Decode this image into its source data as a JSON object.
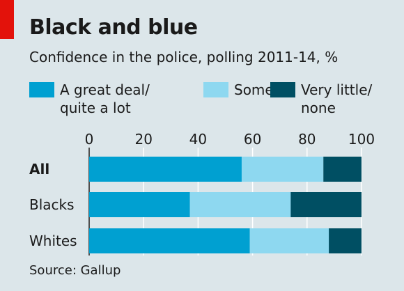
{
  "title": "Black and blue",
  "subtitle": "Confidence in the police, polling 2011-14, %",
  "source": "Source: Gallup",
  "chart_data": {
    "type": "bar",
    "orientation": "horizontal",
    "stacked": true,
    "categories": [
      "All",
      "Blacks",
      "Whites"
    ],
    "series": [
      {
        "name": "A great deal/\nquite a lot",
        "color": "#00a0d1",
        "values": [
          56,
          37,
          59
        ]
      },
      {
        "name": "Some",
        "color": "#8ed8f0",
        "values": [
          30,
          37,
          29
        ]
      },
      {
        "name": "Very little/\nnone",
        "color": "#004f63",
        "values": [
          14,
          26,
          12
        ]
      }
    ],
    "xticks": [
      "0",
      "20",
      "40",
      "60",
      "80",
      "100"
    ],
    "xlim": [
      0,
      100
    ],
    "legend_position": "top",
    "grid": true
  }
}
